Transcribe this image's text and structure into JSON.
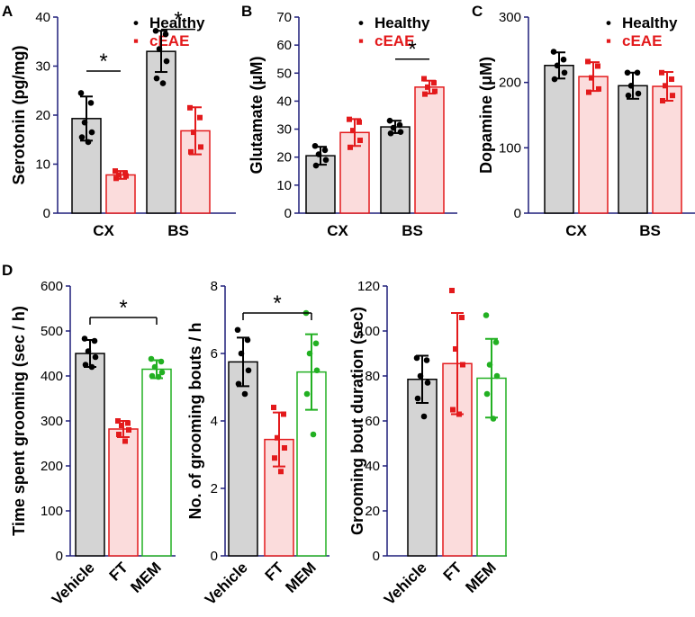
{
  "figure": {
    "panels": [
      {
        "letter": "A",
        "chart_index": 0
      },
      {
        "letter": "B",
        "chart_index": 1
      },
      {
        "letter": "C",
        "chart_index": 2
      },
      {
        "letter": "D",
        "chart_index": 3
      }
    ]
  },
  "colors": {
    "healthy_fill": "#d4d4d4",
    "healthy_edge": "#000000",
    "ceae_fill": "#fbdcdc",
    "ceae_edge": "#e31a1c",
    "ft_fill": "#fbdcdc",
    "ft_edge": "#e31a1c",
    "mem_fill": "#ffffff",
    "mem_edge": "#22b022",
    "axis": "#1f1f7a"
  },
  "chart_data": [
    {
      "type": "bar",
      "panel": "A",
      "ylabel": "Serotonin (pg/mg)",
      "ylim": [
        0,
        40
      ],
      "yticks": [
        "0",
        "10",
        "20",
        "30",
        "40"
      ],
      "categories": [
        "CX",
        "BS"
      ],
      "legend": {
        "position": "top-right"
      },
      "series": [
        {
          "name": "Healthy",
          "values": [
            19.3,
            33.0
          ],
          "sd": [
            4.5,
            4.2
          ],
          "points": [
            [
              24.5,
              22.5,
              18.5,
              16.5,
              15.5,
              14.5
            ],
            [
              37.2,
              36.5,
              33.5,
              31.0,
              27.5,
              26.5
            ]
          ]
        },
        {
          "name": "cEAE",
          "values": [
            7.8,
            16.8
          ],
          "sd": [
            0.8,
            4.8
          ],
          "points": [
            [
              8.6,
              8.2,
              7.8,
              7.6,
              7.1
            ],
            [
              21.5,
              19.5,
              16.5,
              13.5,
              12.5
            ]
          ]
        }
      ],
      "significance": [
        {
          "category": "CX",
          "label": "*"
        },
        {
          "category": "BS",
          "label": "*"
        }
      ]
    },
    {
      "type": "bar",
      "panel": "B",
      "ylabel": "Glutamate (μM)",
      "ylim": [
        0,
        70
      ],
      "yticks": [
        "0",
        "10",
        "20",
        "30",
        "40",
        "50",
        "60",
        "70"
      ],
      "categories": [
        "CX",
        "BS"
      ],
      "legend": {
        "position": "top-right"
      },
      "series": [
        {
          "name": "Healthy",
          "values": [
            20.5,
            30.8
          ],
          "sd": [
            3.2,
            2.2
          ],
          "points": [
            [
              24.0,
              22.5,
              21.0,
              19.0,
              17.0
            ],
            [
              33.0,
              31.5,
              30.5,
              29.0,
              28.5
            ]
          ]
        },
        {
          "name": "cEAE",
          "values": [
            28.8,
            45.0
          ],
          "sd": [
            4.8,
            2.3
          ],
          "points": [
            [
              33.5,
              32.5,
              29.5,
              26.0,
              23.5
            ],
            [
              48.0,
              46.5,
              45.0,
              43.5,
              42.5
            ]
          ]
        }
      ],
      "significance": [
        {
          "category": "BS",
          "label": "*"
        }
      ]
    },
    {
      "type": "bar",
      "panel": "C",
      "ylabel": "Dopamine (μM)",
      "ylim": [
        0,
        300
      ],
      "yticks": [
        "0",
        "100",
        "200",
        "300"
      ],
      "categories": [
        "CX",
        "BS"
      ],
      "legend": {
        "position": "top-right"
      },
      "series": [
        {
          "name": "Healthy",
          "values": [
            226,
            195
          ],
          "sd": [
            20,
            20
          ],
          "points": [
            [
              247,
              235,
              226,
              215,
              205
            ],
            [
              215,
              215,
              195,
              183,
              180
            ]
          ]
        },
        {
          "name": "cEAE",
          "values": [
            209,
            194
          ],
          "sd": [
            22,
            22
          ],
          "points": [
            [
              232,
              225,
              207,
              190,
              185
            ],
            [
              215,
              205,
              195,
              180,
              172
            ]
          ]
        }
      ],
      "significance": []
    },
    {
      "type": "bar",
      "panel": "D",
      "subplots": [
        {
          "ylabel": "Time spent grooming (sec / h)",
          "ylim": [
            0,
            600
          ],
          "yticks": [
            "0",
            "100",
            "200",
            "300",
            "400",
            "500",
            "600"
          ],
          "categories": [
            "Vehicle",
            "FT",
            "MEM"
          ],
          "values": [
            450,
            282,
            415
          ],
          "sd": [
            30,
            18,
            20
          ],
          "points": [
            [
              483,
              478,
              455,
              442,
              425,
              420
            ],
            [
              300,
              295,
              290,
              280,
              270,
              255
            ],
            [
              438,
              432,
              420,
              408,
              400,
              398
            ]
          ],
          "significance": [
            {
              "from": "Vehicle",
              "to": "MEM",
              "label": "*"
            }
          ]
        },
        {
          "ylabel": "No. of grooming bouts / h",
          "ylim": [
            0,
            8
          ],
          "yticks": [
            "0",
            "2",
            "4",
            "6",
            "8"
          ],
          "categories": [
            "Vehicle",
            "FT",
            "MEM"
          ],
          "values": [
            5.75,
            3.45,
            5.45
          ],
          "sd": [
            0.72,
            0.8,
            1.12
          ],
          "points": [
            [
              6.7,
              6.4,
              6.0,
              5.5,
              5.1,
              4.8
            ],
            [
              4.4,
              4.2,
              3.5,
              3.2,
              2.9,
              2.5
            ],
            [
              7.2,
              6.3,
              6.0,
              5.5,
              4.8,
              3.6
            ]
          ],
          "significance": [
            {
              "from": "Vehicle",
              "to": "MEM",
              "label": "*"
            }
          ]
        },
        {
          "ylabel": "Grooming bout duration (sec)",
          "ylim": [
            0,
            120
          ],
          "yticks": [
            "0",
            "20",
            "40",
            "60",
            "80",
            "100",
            "120"
          ],
          "categories": [
            "Vehicle",
            "FT",
            "MEM"
          ],
          "values": [
            78.5,
            85.5,
            79
          ],
          "sd": [
            10.5,
            22.5,
            17.5
          ],
          "points": [
            [
              88,
              87,
              80,
              77,
              70,
              62
            ],
            [
              118,
              106,
              92,
              85,
              65,
              63
            ],
            [
              107,
              95,
              85,
              80,
              72,
              61
            ]
          ],
          "significance": []
        }
      ]
    }
  ]
}
